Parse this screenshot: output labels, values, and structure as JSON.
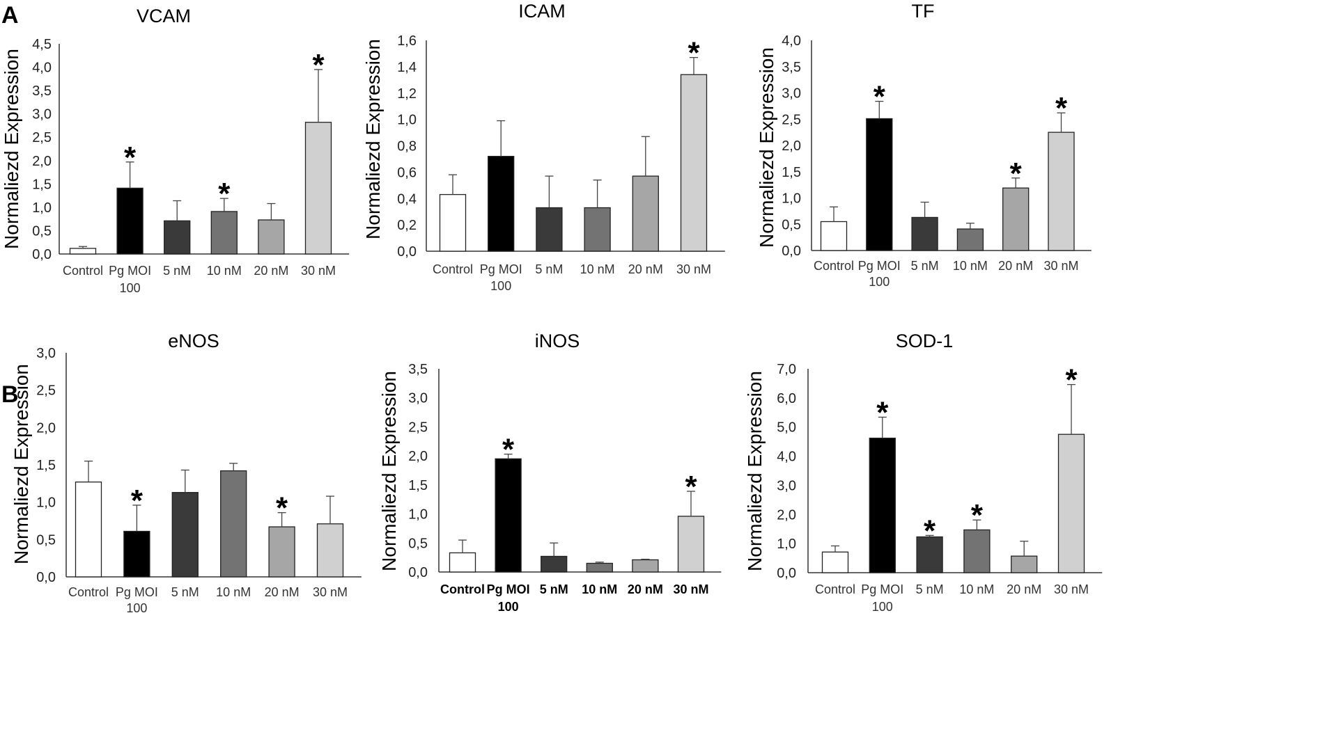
{
  "panel_letters": [
    "A",
    "B"
  ],
  "chart_data": [
    {
      "type": "bar",
      "title": "VCAM",
      "ylabel": "Normaliezd Expression",
      "xlabel": "",
      "categories": [
        [
          "Control"
        ],
        [
          "Pg MOI",
          "100"
        ],
        [
          "5 nM"
        ],
        [
          "10 nM"
        ],
        [
          "20 nM"
        ],
        [
          "30 nM"
        ]
      ],
      "values": [
        0.12,
        1.41,
        0.71,
        0.91,
        0.73,
        2.82
      ],
      "errors": [
        0.04,
        0.56,
        0.43,
        0.28,
        0.35,
        1.13
      ],
      "significant": [
        false,
        true,
        false,
        true,
        false,
        true
      ],
      "significance_marker": "*",
      "ylim": [
        0,
        4.5
      ],
      "ytick_step": 0.5,
      "ytick_labels": [
        "0,0",
        "0,5",
        "1,0",
        "1,5",
        "2,0",
        "2,5",
        "3,0",
        "3,5",
        "4,0",
        "4,5"
      ],
      "bar_colors": [
        "#ffffff",
        "#000000",
        "#3a3a3a",
        "#737373",
        "#a6a6a6",
        "#d0d0d0"
      ],
      "grid": false
    },
    {
      "type": "bar",
      "title": "ICAM",
      "ylabel": "Normaliezd Expression",
      "xlabel": "",
      "categories": [
        [
          "Control"
        ],
        [
          "Pg MOI",
          "100"
        ],
        [
          "5 nM"
        ],
        [
          "10 nM"
        ],
        [
          "20 nM"
        ],
        [
          "30 nM"
        ]
      ],
      "values": [
        0.43,
        0.72,
        0.33,
        0.33,
        0.57,
        1.34
      ],
      "errors": [
        0.15,
        0.27,
        0.24,
        0.21,
        0.3,
        0.13
      ],
      "significant": [
        false,
        false,
        false,
        false,
        false,
        true
      ],
      "significance_marker": "*",
      "ylim": [
        0,
        1.6
      ],
      "ytick_step": 0.2,
      "ytick_labels": [
        "0,0",
        "0,2",
        "0,4",
        "0,6",
        "0,8",
        "1,0",
        "1,2",
        "1,4",
        "1,6"
      ],
      "bar_colors": [
        "#ffffff",
        "#000000",
        "#3a3a3a",
        "#737373",
        "#a6a6a6",
        "#d0d0d0"
      ],
      "grid": false
    },
    {
      "type": "bar",
      "title": "TF",
      "ylabel": "Normaliezd Expression",
      "xlabel": "",
      "categories": [
        [
          "Control"
        ],
        [
          "Pg MOI",
          "100"
        ],
        [
          "5 nM"
        ],
        [
          "10 nM"
        ],
        [
          "20 nM"
        ],
        [
          "30 nM"
        ]
      ],
      "values": [
        0.55,
        2.51,
        0.63,
        0.41,
        1.19,
        2.25
      ],
      "errors": [
        0.28,
        0.33,
        0.29,
        0.11,
        0.19,
        0.37
      ],
      "significant": [
        false,
        true,
        false,
        false,
        true,
        true
      ],
      "significance_marker": "*",
      "ylim": [
        0,
        4.0
      ],
      "ytick_step": 0.5,
      "ytick_labels": [
        "0,0",
        "0,5",
        "1,0",
        "1,5",
        "2,0",
        "2,5",
        "3,0",
        "3,5",
        "4,0"
      ],
      "bar_colors": [
        "#ffffff",
        "#000000",
        "#3a3a3a",
        "#737373",
        "#a6a6a6",
        "#d0d0d0"
      ],
      "grid": false
    },
    {
      "type": "bar",
      "title": "eNOS",
      "ylabel": "Normaliezd Expression",
      "xlabel": "",
      "categories": [
        [
          "Control"
        ],
        [
          "Pg MOI",
          "100"
        ],
        [
          "5 nM"
        ],
        [
          "10 nM"
        ],
        [
          "20 nM"
        ],
        [
          "30 nM"
        ]
      ],
      "values": [
        1.27,
        0.61,
        1.13,
        1.42,
        0.67,
        0.71
      ],
      "errors": [
        0.28,
        0.35,
        0.3,
        0.1,
        0.19,
        0.37
      ],
      "significant": [
        false,
        true,
        false,
        false,
        true,
        false
      ],
      "significance_marker": "*",
      "ylim": [
        0,
        3.0
      ],
      "ytick_step": 0.5,
      "ytick_labels": [
        "0,0",
        "0,5",
        "1,0",
        "1,5",
        "2,0",
        "2,5",
        "3,0"
      ],
      "bar_colors": [
        "#ffffff",
        "#000000",
        "#3a3a3a",
        "#737373",
        "#a6a6a6",
        "#d0d0d0"
      ],
      "grid": false
    },
    {
      "type": "bar",
      "title": "iNOS",
      "ylabel": "Normaliezd Expression",
      "xlabel": "",
      "categories": [
        [
          "Control"
        ],
        [
          "Pg MOI",
          "100"
        ],
        [
          "5 nM"
        ],
        [
          "10 nM"
        ],
        [
          "20 nM"
        ],
        [
          "30 nM"
        ]
      ],
      "values": [
        0.33,
        1.95,
        0.27,
        0.15,
        0.21,
        0.96
      ],
      "errors": [
        0.22,
        0.08,
        0.23,
        0.02,
        0.01,
        0.43
      ],
      "significant": [
        false,
        true,
        false,
        false,
        false,
        true
      ],
      "significance_marker": "*",
      "ylim": [
        0,
        3.5
      ],
      "ytick_step": 0.5,
      "ytick_labels": [
        "0,0",
        "0,5",
        "1,0",
        "1,5",
        "2,0",
        "2,5",
        "3,0",
        "3,5"
      ],
      "bar_colors": [
        "#ffffff",
        "#000000",
        "#3a3a3a",
        "#737373",
        "#a6a6a6",
        "#d0d0d0"
      ],
      "grid": false
    },
    {
      "type": "bar",
      "title": "SOD-1",
      "ylabel": "Normaliezd Expression",
      "xlabel": "",
      "categories": [
        [
          "Control"
        ],
        [
          "Pg MOI",
          "100"
        ],
        [
          "5 nM"
        ],
        [
          "10 nM"
        ],
        [
          "20 nM"
        ],
        [
          "30 nM"
        ]
      ],
      "values": [
        0.71,
        4.62,
        1.23,
        1.47,
        0.57,
        4.75
      ],
      "errors": [
        0.21,
        0.72,
        0.05,
        0.34,
        0.51,
        1.71
      ],
      "significant": [
        false,
        true,
        true,
        true,
        false,
        true
      ],
      "significance_marker": "*",
      "ylim": [
        0,
        7.0
      ],
      "ytick_step": 1.0,
      "ytick_labels": [
        "0,0",
        "1,0",
        "2,0",
        "3,0",
        "4,0",
        "5,0",
        "6,0",
        "7,0"
      ],
      "bar_colors": [
        "#ffffff",
        "#000000",
        "#3a3a3a",
        "#737373",
        "#a6a6a6",
        "#d0d0d0"
      ],
      "grid": false
    }
  ]
}
